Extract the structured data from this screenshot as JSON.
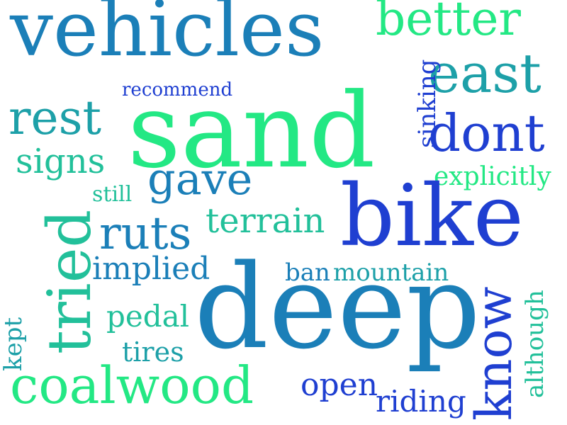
{
  "colors": {
    "background": "#ffffff",
    "dark_blue": "#1f3fd1",
    "teal_blue": "#1b7fb8",
    "teal": "#1da0a8",
    "sea_green": "#22c09a",
    "mint": "#23e884"
  },
  "words": {
    "vehicles": "vehicles",
    "better": "better",
    "east": "east",
    "recommend": "recommend",
    "sand": "sand",
    "rest": "rest",
    "sinking": "sinking",
    "dont": "dont",
    "signs": "signs",
    "gave": "gave",
    "explicitly": "explicitly",
    "still": "still",
    "bike": "bike",
    "terrain": "terrain",
    "tried": "tried",
    "ruts": "ruts",
    "implied": "implied",
    "ban": "ban",
    "mountain": "mountain",
    "deep": "deep",
    "know": "know",
    "although": "although",
    "pedal": "pedal",
    "kept": "kept",
    "tires": "tires",
    "coalwood": "coalwood",
    "open": "open",
    "riding": "riding"
  }
}
